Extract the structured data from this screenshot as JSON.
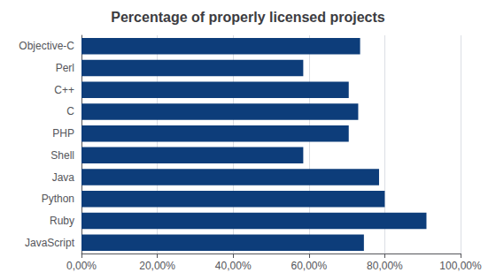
{
  "chart_data": {
    "type": "bar",
    "orientation": "horizontal",
    "title": "Percentage of properly licensed projects",
    "categories": [
      "Objective-C",
      "Perl",
      "C++",
      "C",
      "PHP",
      "Shell",
      "Java",
      "Python",
      "Ruby",
      "JavaScript"
    ],
    "values": [
      0.735,
      0.585,
      0.705,
      0.73,
      0.705,
      0.585,
      0.785,
      0.8,
      0.91,
      0.745
    ],
    "color": "#0d3d7a",
    "xlim": [
      0,
      1.0
    ],
    "xticks": [
      {
        "value": 0,
        "label": "0,00%"
      },
      {
        "value": 0.2,
        "label": "20,00%"
      },
      {
        "value": 0.4,
        "label": "40,00%"
      },
      {
        "value": 0.6,
        "label": "60,00%"
      },
      {
        "value": 0.8,
        "label": "80,00%"
      },
      {
        "value": 1.0,
        "label": "100,00%"
      }
    ],
    "grid": true
  }
}
